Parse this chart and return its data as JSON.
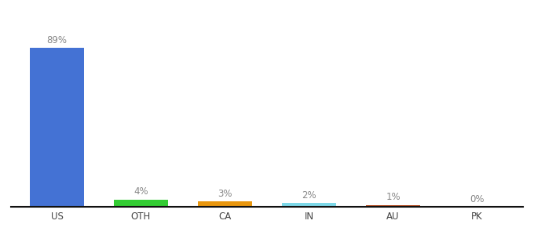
{
  "categories": [
    "US",
    "OTH",
    "CA",
    "IN",
    "AU",
    "PK"
  ],
  "values": [
    89,
    4,
    3,
    2,
    1,
    0
  ],
  "labels": [
    "89%",
    "4%",
    "3%",
    "2%",
    "1%",
    "0%"
  ],
  "bar_colors": [
    "#4472d4",
    "#33cc33",
    "#e8960e",
    "#7dd8e8",
    "#b04010",
    "#b04010"
  ],
  "background_color": "#ffffff",
  "ylim": [
    0,
    100
  ],
  "bar_width": 0.65,
  "label_fontsize": 8.5,
  "tick_fontsize": 8.5,
  "label_color": "#888888"
}
